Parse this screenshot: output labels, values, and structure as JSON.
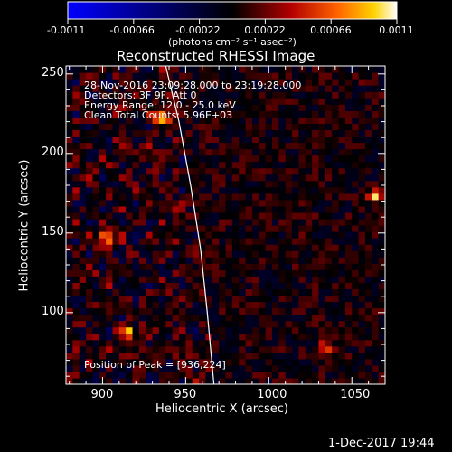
{
  "chart_data": {
    "type": "heatmap",
    "title": "Reconstructed RHESSI Image",
    "xlabel": "Heliocentric X (arcsec)",
    "ylabel": "Heliocentric Y (arcsec)",
    "xlim": [
      878,
      1070
    ],
    "ylim": [
      55,
      255
    ],
    "x_ticks": [
      900,
      950,
      1000,
      1050
    ],
    "y_ticks": [
      100,
      150,
      200,
      250
    ],
    "colorbar": {
      "min": -0.0011,
      "max": 0.0011,
      "ticks": [
        "-0.0011",
        "-0.00066",
        "-0.00022",
        "0.00022",
        "0.00066",
        "0.0011"
      ],
      "unit_label": "(photons cm⁻² s⁻¹ asec⁻²)",
      "colormap": [
        "#0000ff",
        "#000000",
        "#b40000",
        "#ff6400",
        "#ffd200",
        "#ffffff"
      ]
    },
    "annotations": {
      "date_range": "28-Nov-2016 23:09:28.000 to 23:19:28.000",
      "detectors": "Detectors: 3F 9F, Att 0",
      "energy": "Energy Range: 12.0 - 25.0 keV",
      "method": "Clean    Total Counts: 5.96E+03",
      "peak": "Position of Peak = [936,224]"
    },
    "limb_curve": [
      [
        938,
        255
      ],
      [
        946,
        220
      ],
      [
        953,
        180
      ],
      [
        959,
        140
      ],
      [
        963,
        100
      ],
      [
        967,
        55
      ]
    ],
    "hotspots": [
      {
        "x": 936,
        "y": 224,
        "value": 0.0011
      },
      {
        "x": 903,
        "y": 148,
        "value": 0.0009
      },
      {
        "x": 1064,
        "y": 173,
        "value": 0.0008
      },
      {
        "x": 915,
        "y": 88,
        "value": 0.0008
      },
      {
        "x": 1034,
        "y": 77,
        "value": 0.0007
      }
    ]
  },
  "footer_timestamp": "1-Dec-2017 19:44"
}
